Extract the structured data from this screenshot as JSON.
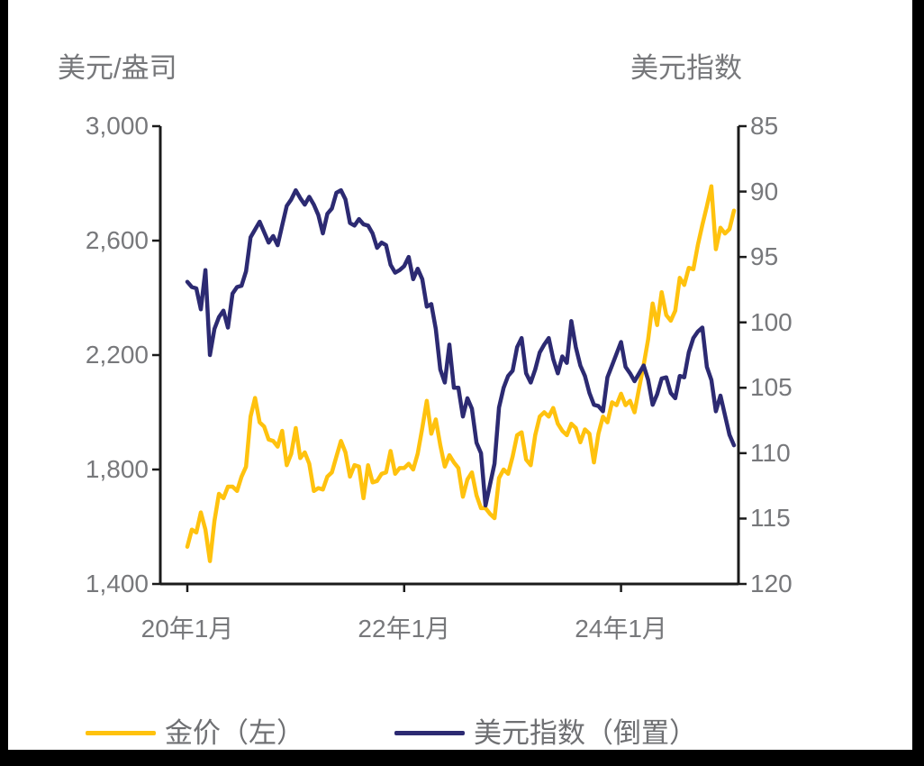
{
  "colors": {
    "gold": "#FFC20E",
    "navy": "#2C2A72",
    "axis": "#1B1B1B",
    "tick_text": "#77787B",
    "frame": "#000000",
    "background": "#FFFFFF"
  },
  "legend": {
    "items": [
      {
        "label": "金价（左）",
        "color": "#FFC20E"
      },
      {
        "label": "美元指数（倒置）",
        "color": "#2C2A72"
      }
    ]
  },
  "chart_data": {
    "type": "line",
    "title": "",
    "xlabel": "",
    "x_tick_labels": [
      "20年1月",
      "22年1月",
      "24年1月"
    ],
    "x_ticks": [
      {
        "label": "20年1月",
        "month": 0
      },
      {
        "label": "22年1月",
        "month": 24
      },
      {
        "label": "24年1月",
        "month": 48
      }
    ],
    "x_start": "2020-01",
    "x_end": "2025-01",
    "x_range_months": 60.5,
    "sample_interval": "half-month",
    "grid": false,
    "legend_position": "bottom",
    "y_left": {
      "title": "美元/盎司",
      "min": 1400,
      "max": 3000,
      "tick_values": [
        3000,
        2600,
        2200,
        1800,
        1400
      ],
      "tick_labels": [
        "3,000",
        "2,600",
        "2,200",
        "1,800",
        "1,400"
      ]
    },
    "y_right": {
      "title": "美元指数",
      "min": 85,
      "max": 120,
      "inverted_display": true,
      "tick_values": [
        85,
        90,
        95,
        100,
        105,
        110,
        115,
        120
      ],
      "tick_labels": [
        "85",
        "90",
        "95",
        "100",
        "105",
        "110",
        "115",
        "120"
      ]
    },
    "series": [
      {
        "name": "金价（左）",
        "axis": "left",
        "color": "#FFC20E",
        "values": [
          1530,
          1590,
          1580,
          1650,
          1590,
          1480,
          1620,
          1715,
          1700,
          1740,
          1740,
          1725,
          1775,
          1810,
          1985,
          2050,
          1965,
          1950,
          1905,
          1900,
          1880,
          1935,
          1815,
          1855,
          1945,
          1840,
          1860,
          1820,
          1725,
          1735,
          1730,
          1775,
          1790,
          1845,
          1900,
          1860,
          1775,
          1815,
          1810,
          1700,
          1815,
          1755,
          1760,
          1785,
          1790,
          1865,
          1785,
          1805,
          1805,
          1820,
          1800,
          1855,
          1945,
          2040,
          1925,
          1975,
          1885,
          1810,
          1850,
          1825,
          1805,
          1705,
          1765,
          1790,
          1710,
          1665,
          1665,
          1645,
          1630,
          1770,
          1800,
          1785,
          1845,
          1920,
          1930,
          1835,
          1815,
          1920,
          1985,
          2000,
          1985,
          2015,
          1960,
          1935,
          1920,
          1960,
          1945,
          1895,
          1940,
          1925,
          1825,
          1925,
          1985,
          1965,
          2035,
          2025,
          2065,
          2025,
          2040,
          2000,
          2085,
          2165,
          2255,
          2380,
          2305,
          2420,
          2340,
          2320,
          2355,
          2470,
          2445,
          2505,
          2500,
          2585,
          2655,
          2720,
          2790,
          2570,
          2645,
          2625,
          2640,
          2705
        ]
      },
      {
        "name": "美元指数（倒置）",
        "axis": "right",
        "color": "#2C2A72",
        "values": [
          96.9,
          97.3,
          97.4,
          99.0,
          96.0,
          102.5,
          100.5,
          99.6,
          99.1,
          100.4,
          97.8,
          97.3,
          97.2,
          96.1,
          93.5,
          92.9,
          92.3,
          93.1,
          93.9,
          93.4,
          94.1,
          92.6,
          91.1,
          90.6,
          89.9,
          90.5,
          91.0,
          90.4,
          91.0,
          91.8,
          93.2,
          91.7,
          91.3,
          90.1,
          89.9,
          90.6,
          92.4,
          92.6,
          92.1,
          92.5,
          92.6,
          93.2,
          94.3,
          93.9,
          94.1,
          95.6,
          96.2,
          96.0,
          95.7,
          95.0,
          96.7,
          95.9,
          96.7,
          98.8,
          98.6,
          100.5,
          103.6,
          104.6,
          101.7,
          105.0,
          105.0,
          107.2,
          105.8,
          106.6,
          109.2,
          110.0,
          114.0,
          112.4,
          110.8,
          106.5,
          105.0,
          104.1,
          103.7,
          101.9,
          101.2,
          103.9,
          104.6,
          103.6,
          102.3,
          101.7,
          101.2,
          102.8,
          103.9,
          102.6,
          103.1,
          99.9,
          101.9,
          103.3,
          104.1,
          105.4,
          106.3,
          106.4,
          106.8,
          104.2,
          103.3,
          102.4,
          101.5,
          103.4,
          103.9,
          104.5,
          103.9,
          103.3,
          104.4,
          106.3,
          105.5,
          104.3,
          104.2,
          105.4,
          105.8,
          104.1,
          104.2,
          102.3,
          101.2,
          100.7,
          100.4,
          103.4,
          104.4,
          106.8,
          105.6,
          107.1,
          108.6,
          109.4
        ]
      }
    ]
  }
}
